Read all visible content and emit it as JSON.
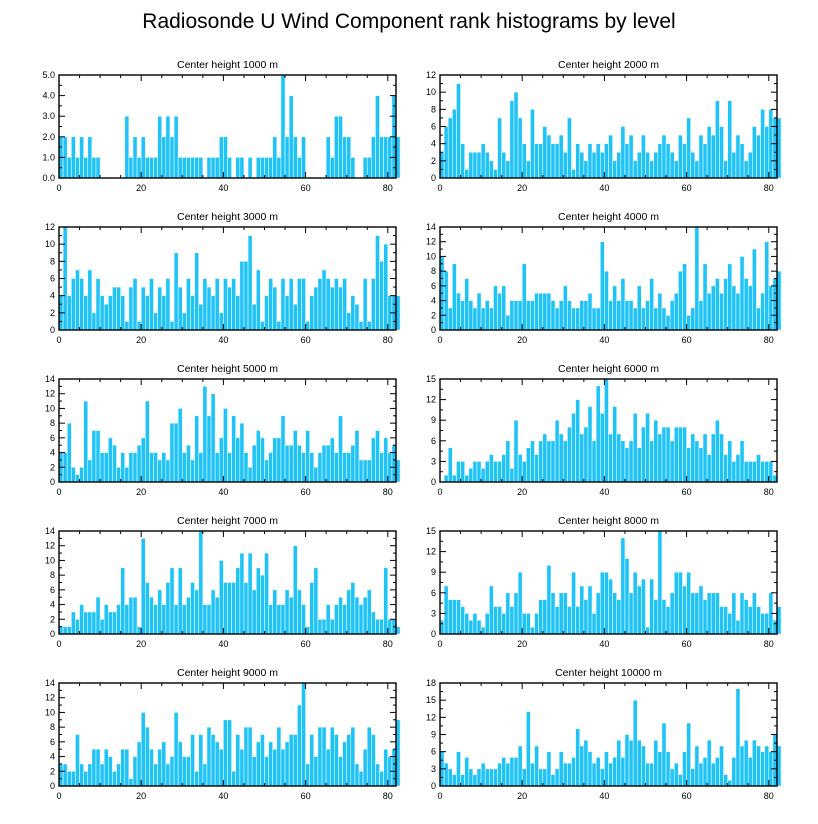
{
  "title": "Radiosonde U Wind Component rank histograms by level",
  "colors": {
    "bar": "#1fc3f6",
    "bar_edge": "#e8f9ff",
    "axis": "#000000"
  },
  "chart_data": [
    {
      "type": "bar",
      "title": "Center height 1000 m",
      "xlim": [
        0,
        82
      ],
      "ylim": [
        0,
        5
      ],
      "xticks": [
        "0",
        "20",
        "40",
        "60",
        "80"
      ],
      "yticks": [
        "0.0",
        "1.0",
        "2.0",
        "3.0",
        "4.0",
        "5.0"
      ],
      "values": [
        2,
        2,
        1,
        2,
        1,
        2,
        1,
        2,
        1,
        1,
        0,
        0,
        0,
        0,
        0,
        0,
        3,
        1,
        2,
        1,
        2,
        1,
        1,
        1,
        3,
        2,
        3,
        2,
        3,
        1,
        1,
        1,
        1,
        1,
        1,
        0,
        1,
        1,
        1,
        2,
        2,
        1,
        0,
        1,
        1,
        0,
        1,
        0,
        1,
        1,
        1,
        1,
        2,
        1,
        5,
        2,
        4,
        2,
        1,
        2,
        0,
        0,
        0,
        0,
        0,
        2,
        1,
        3,
        3,
        2,
        2,
        1,
        0,
        0,
        1,
        1,
        2,
        4,
        2,
        2,
        2,
        4,
        2
      ]
    },
    {
      "type": "bar",
      "title": "Center height 2000 m",
      "xlim": [
        0,
        82
      ],
      "ylim": [
        0,
        12
      ],
      "xticks": [
        "0",
        "20",
        "40",
        "60",
        "80"
      ],
      "yticks": [
        "0",
        "2",
        "4",
        "6",
        "8",
        "10",
        "12"
      ],
      "values": [
        3,
        6,
        7,
        8,
        11,
        4,
        1,
        3,
        3,
        3,
        4,
        3,
        2,
        1,
        7,
        3,
        2,
        9,
        10,
        7,
        4,
        2,
        8,
        4,
        4,
        6,
        5,
        4,
        4,
        5,
        3,
        7,
        1,
        4,
        3,
        2,
        4,
        3,
        4,
        3,
        4,
        5,
        2,
        3,
        6,
        4,
        5,
        2,
        3,
        5,
        3,
        2,
        3,
        4,
        5,
        4,
        3,
        2,
        5,
        4,
        7,
        3,
        2,
        5,
        4,
        6,
        5,
        9,
        6,
        2,
        9,
        3,
        5,
        4,
        2,
        3,
        6,
        5,
        8,
        6,
        8,
        7,
        7
      ]
    },
    {
      "type": "bar",
      "title": "Center height 3000 m",
      "xlim": [
        0,
        82
      ],
      "ylim": [
        0,
        12
      ],
      "xticks": [
        "0",
        "20",
        "40",
        "60",
        "80"
      ],
      "yticks": [
        "0",
        "2",
        "4",
        "6",
        "8",
        "10",
        "12"
      ],
      "values": [
        4,
        12,
        4,
        6,
        7,
        6,
        4,
        7,
        2,
        6,
        4,
        3,
        4,
        5,
        5,
        4,
        1,
        5,
        6,
        1,
        5,
        4,
        6,
        2,
        5,
        4,
        6,
        1,
        9,
        5,
        2,
        6,
        4,
        9,
        3,
        6,
        5,
        4,
        6,
        2,
        6,
        5,
        6,
        4,
        8,
        8,
        11,
        3,
        7,
        1,
        4,
        6,
        5,
        1,
        6,
        4,
        6,
        3,
        6,
        6,
        1,
        4,
        5,
        6,
        7,
        6,
        5,
        6,
        5,
        6,
        2,
        4,
        3,
        1,
        6,
        1,
        6,
        11,
        8,
        10,
        4,
        4,
        4
      ]
    },
    {
      "type": "bar",
      "title": "Center height 4000 m",
      "xlim": [
        0,
        82
      ],
      "ylim": [
        0,
        14
      ],
      "xticks": [
        "0",
        "20",
        "40",
        "60",
        "80"
      ],
      "yticks": [
        "0",
        "2",
        "4",
        "6",
        "8",
        "10",
        "12",
        "14"
      ],
      "values": [
        10,
        8,
        3,
        9,
        5,
        4,
        7,
        4,
        3,
        5,
        3,
        4,
        3,
        6,
        5,
        6,
        2,
        4,
        4,
        4,
        9,
        4,
        4,
        5,
        5,
        5,
        5,
        4,
        3,
        4,
        6,
        4,
        3,
        3,
        4,
        4,
        5,
        3,
        3,
        12,
        8,
        4,
        6,
        4,
        7,
        4,
        4,
        3,
        6,
        3,
        4,
        7,
        3,
        5,
        3,
        2,
        4,
        5,
        8,
        9,
        2,
        3,
        14,
        4,
        9,
        5,
        6,
        7,
        5,
        7,
        9,
        6,
        5,
        10,
        7,
        6,
        11,
        3,
        5,
        12,
        6,
        7,
        8
      ]
    },
    {
      "type": "bar",
      "title": "Center height 5000 m",
      "xlim": [
        0,
        82
      ],
      "ylim": [
        0,
        14
      ],
      "xticks": [
        "0",
        "20",
        "40",
        "60",
        "80"
      ],
      "yticks": [
        "0",
        "2",
        "4",
        "6",
        "8",
        "10",
        "12",
        "14"
      ],
      "values": [
        4,
        4,
        8,
        2,
        1,
        2,
        11,
        3,
        7,
        7,
        4,
        4,
        6,
        5,
        2,
        4,
        2,
        4,
        4,
        5,
        6,
        11,
        4,
        4,
        3,
        4,
        3,
        8,
        8,
        10,
        4,
        5,
        3,
        9,
        4,
        13,
        9,
        12,
        4,
        6,
        10,
        4,
        9,
        6,
        8,
        4,
        2,
        5,
        7,
        6,
        3,
        4,
        6,
        6,
        9,
        5,
        5,
        7,
        5,
        4,
        7,
        4,
        2,
        4,
        5,
        5,
        6,
        4,
        9,
        4,
        4,
        5,
        7,
        3,
        3,
        3,
        6,
        7,
        4,
        6,
        4,
        5,
        3
      ]
    },
    {
      "type": "bar",
      "title": "Center height 6000 m",
      "xlim": [
        0,
        82
      ],
      "ylim": [
        0,
        15
      ],
      "xticks": [
        "0",
        "20",
        "40",
        "60",
        "80"
      ],
      "yticks": [
        "0",
        "3",
        "6",
        "9",
        "12",
        "15"
      ],
      "values": [
        0,
        1,
        5,
        1,
        3,
        3,
        1,
        2,
        3,
        3,
        2,
        3,
        4,
        3,
        3,
        4,
        6,
        2,
        9,
        4,
        3,
        5,
        6,
        4,
        6,
        7,
        6,
        6,
        9,
        7,
        6,
        8,
        10,
        12,
        7,
        8,
        11,
        6,
        14,
        10,
        15,
        7,
        11,
        7,
        6,
        5,
        6,
        10,
        5,
        8,
        10,
        6,
        9,
        7,
        8,
        8,
        6,
        8,
        8,
        8,
        5,
        7,
        6,
        5,
        7,
        4,
        7,
        9,
        7,
        4,
        6,
        3,
        4,
        6,
        3,
        3,
        3,
        4,
        3,
        3,
        3,
        1,
        0
      ]
    },
    {
      "type": "bar",
      "title": "Center height 7000 m",
      "xlim": [
        0,
        82
      ],
      "ylim": [
        0,
        14
      ],
      "xticks": [
        "0",
        "20",
        "40",
        "60",
        "80"
      ],
      "yticks": [
        "0",
        "2",
        "4",
        "6",
        "8",
        "10",
        "12",
        "14"
      ],
      "values": [
        1,
        1,
        1,
        3,
        2,
        4,
        3,
        3,
        3,
        5,
        2,
        4,
        3,
        3,
        4,
        9,
        4,
        5,
        5,
        1,
        13,
        7,
        5,
        4,
        6,
        4,
        7,
        9,
        4,
        9,
        4,
        5,
        7,
        6,
        14,
        4,
        4,
        6,
        5,
        10,
        7,
        7,
        7,
        9,
        11,
        7,
        11,
        6,
        9,
        8,
        11,
        4,
        6,
        4,
        4,
        6,
        5,
        12,
        6,
        4,
        1,
        7,
        9,
        2,
        2,
        4,
        2,
        4,
        5,
        4,
        6,
        7,
        5,
        4,
        5,
        6,
        3,
        2,
        2,
        9,
        2,
        2,
        1
      ]
    },
    {
      "type": "bar",
      "title": "Center height 8000 m",
      "xlim": [
        0,
        82
      ],
      "ylim": [
        0,
        15
      ],
      "xticks": [
        "0",
        "20",
        "40",
        "60",
        "80"
      ],
      "yticks": [
        "0",
        "3",
        "6",
        "9",
        "12",
        "15"
      ],
      "values": [
        2,
        7,
        5,
        5,
        5,
        4,
        3,
        2,
        3,
        2,
        1,
        3,
        7,
        4,
        4,
        3,
        6,
        4,
        6,
        9,
        3,
        3,
        1,
        3,
        5,
        5,
        10,
        6,
        4,
        6,
        6,
        4,
        9,
        4,
        7,
        5,
        7,
        3,
        6,
        9,
        9,
        8,
        6,
        5,
        14,
        11,
        6,
        9,
        7,
        8,
        1,
        8,
        5,
        15,
        5,
        4,
        6,
        9,
        9,
        7,
        9,
        6,
        6,
        7,
        5,
        6,
        6,
        6,
        4,
        4,
        3,
        6,
        2,
        6,
        5,
        4,
        6,
        4,
        3,
        3,
        6,
        2,
        4
      ]
    },
    {
      "type": "bar",
      "title": "Center height 9000 m",
      "xlim": [
        0,
        82
      ],
      "ylim": [
        0,
        14
      ],
      "xticks": [
        "0",
        "20",
        "40",
        "60",
        "80"
      ],
      "yticks": [
        "0",
        "2",
        "4",
        "6",
        "8",
        "10",
        "12",
        "14"
      ],
      "values": [
        3,
        3,
        2,
        2,
        7,
        3,
        2,
        3,
        5,
        5,
        3,
        5,
        4,
        2,
        3,
        5,
        5,
        1,
        4,
        6,
        10,
        8,
        5,
        3,
        5,
        6,
        3,
        4,
        10,
        6,
        4,
        4,
        7,
        2,
        7,
        3,
        8,
        7,
        6,
        5,
        9,
        9,
        2,
        7,
        5,
        8,
        8,
        4,
        6,
        7,
        4,
        6,
        5,
        8,
        5,
        6,
        7,
        7,
        11,
        14,
        3,
        7,
        4,
        8,
        8,
        5,
        8,
        7,
        4,
        6,
        7,
        8,
        3,
        2,
        5,
        8,
        7,
        3,
        2,
        5,
        4,
        5,
        9
      ]
    },
    {
      "type": "bar",
      "title": "Center height 10000 m",
      "xlim": [
        0,
        82
      ],
      "ylim": [
        0,
        18
      ],
      "xticks": [
        "0",
        "20",
        "40",
        "60",
        "80"
      ],
      "yticks": [
        "0",
        "3",
        "6",
        "9",
        "12",
        "15",
        "18"
      ],
      "values": [
        6,
        4,
        3,
        2,
        6,
        2,
        5,
        3,
        2,
        3,
        4,
        3,
        3,
        3,
        4,
        5,
        4,
        5,
        5,
        7,
        3,
        13,
        4,
        7,
        3,
        3,
        6,
        2,
        3,
        6,
        4,
        4,
        5,
        10,
        7,
        8,
        6,
        4,
        5,
        3,
        6,
        4,
        5,
        8,
        5,
        9,
        8,
        15,
        8,
        7,
        4,
        4,
        8,
        6,
        11,
        6,
        3,
        4,
        2,
        6,
        11,
        3,
        7,
        4,
        5,
        8,
        4,
        5,
        7,
        2,
        1,
        5,
        17,
        7,
        8,
        5,
        8,
        7,
        6,
        7,
        6,
        9,
        7
      ]
    }
  ]
}
